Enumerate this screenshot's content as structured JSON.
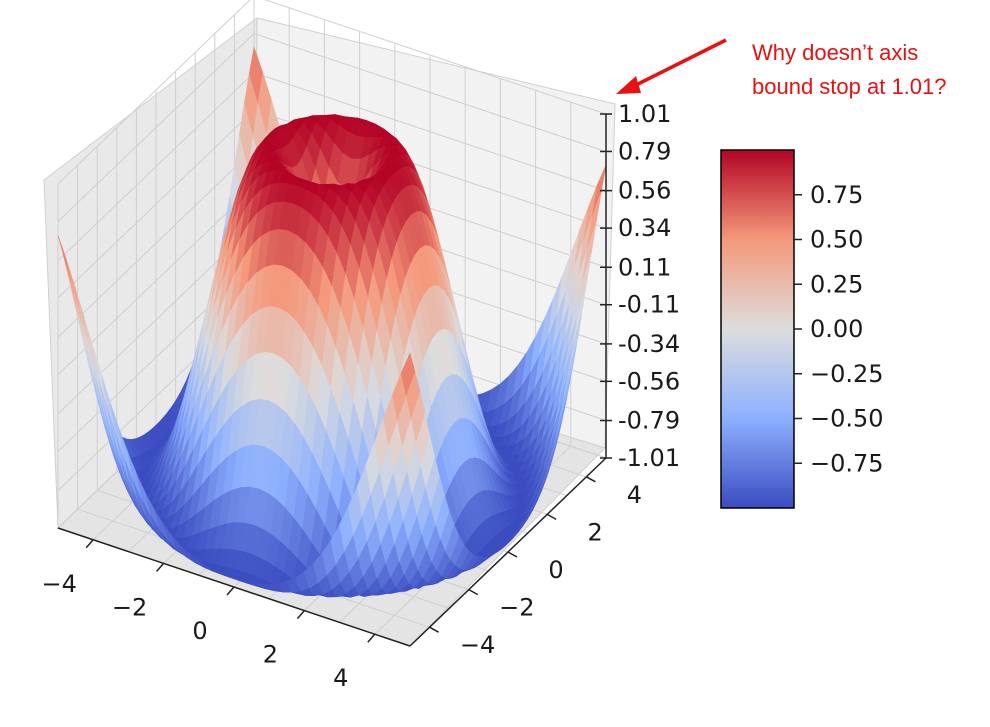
{
  "chart_data": {
    "type": "surface3d",
    "function": "z = sin(sqrt(x^2 + y^2))",
    "x": [
      -5,
      5
    ],
    "y": [
      -5,
      5
    ],
    "zlim": [
      -1.01,
      1.01
    ],
    "x_ticks": [
      "−4",
      "−2",
      "0",
      "2",
      "4"
    ],
    "y_ticks": [
      "−4",
      "−2",
      "0",
      "2",
      "4"
    ],
    "z_ticks": [
      "1.01",
      "0.79",
      "0.56",
      "0.34",
      "0.11",
      "-0.11",
      "-0.34",
      "-0.56",
      "-0.79",
      "-1.01"
    ],
    "colormap": "coolwarm",
    "colorbar": {
      "range": [
        -1,
        1
      ],
      "ticks": [
        "0.75",
        "0.50",
        "0.25",
        "0.00",
        "−0.25",
        "−0.50",
        "−0.75"
      ],
      "low_color": "#3b4cc0",
      "mid_color": "#dddddd",
      "high_color": "#b40426"
    },
    "annotation": {
      "line1": "Why doesn’t axis",
      "line2": "bound stop at 1.01?",
      "color": "#e81010"
    },
    "grid": true
  }
}
